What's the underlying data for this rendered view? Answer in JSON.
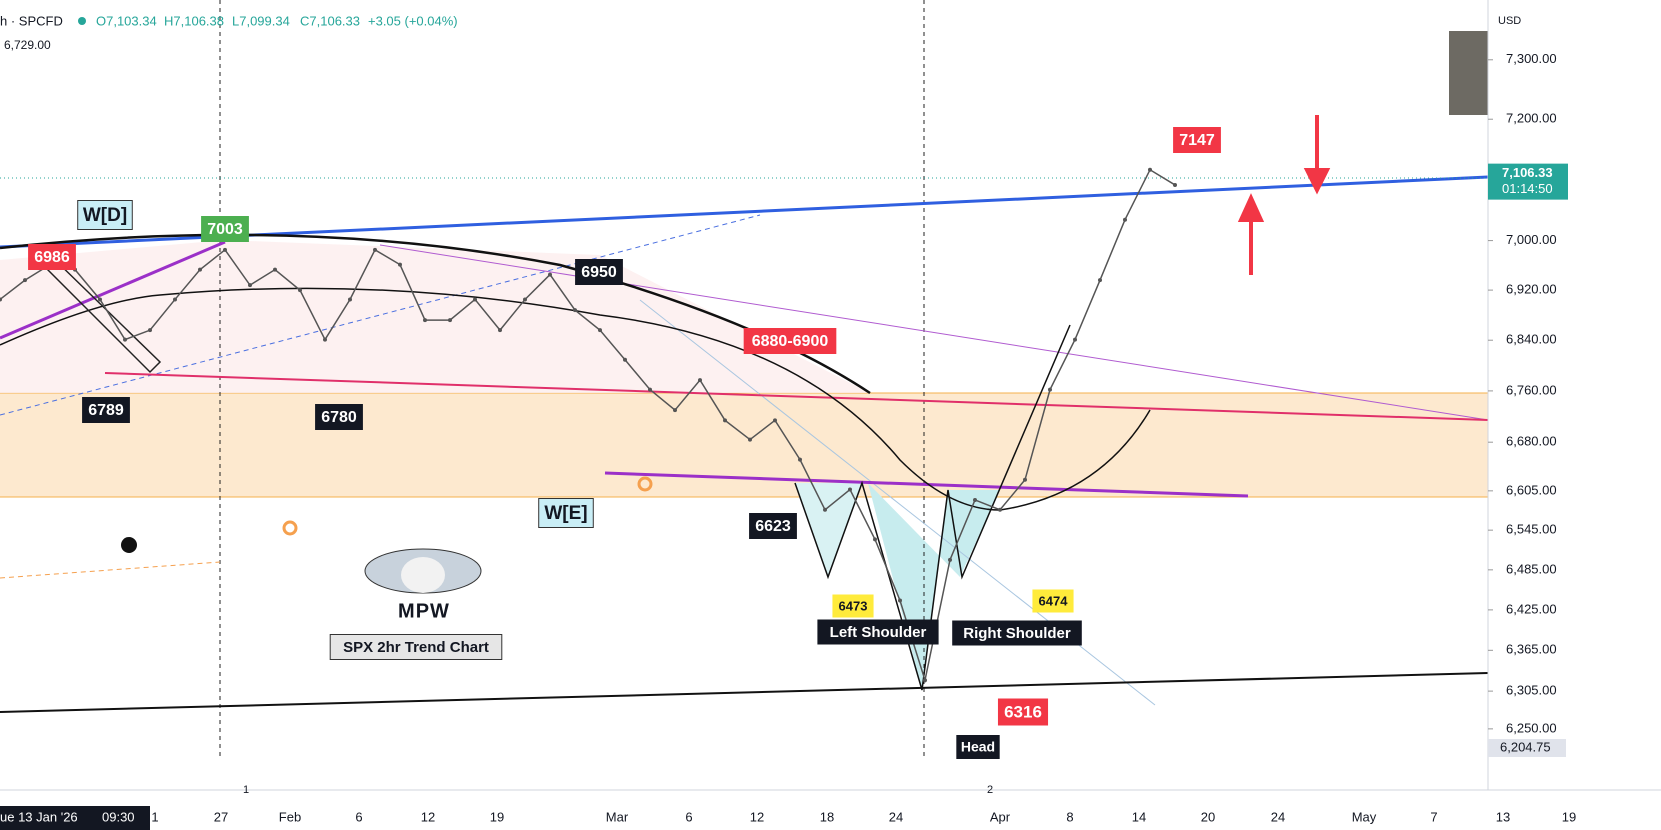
{
  "chart_data": {
    "type": "line",
    "header": {
      "symbol": "h · SPCFD",
      "open": "O7,103.34",
      "high": "H7,106.38",
      "low": "L7,099.34",
      "close": "C7,106.33",
      "change": "+3.05 (+0.04%)",
      "sub": "6,729.00"
    },
    "currency": "USD",
    "log_scale": true,
    "color": "#555555",
    "values": [
      6905,
      6936,
      6961,
      6953,
      6905,
      6841,
      6856,
      6905,
      6953,
      6985,
      6928,
      6953,
      6920,
      6841,
      6905,
      6985,
      6961,
      6872,
      6872,
      6905,
      6856,
      6905,
      6945,
      6888,
      6856,
      6809,
      6762,
      6730,
      6777,
      6714,
      6684,
      6714,
      6653,
      6576,
      6607,
      6531,
      6439,
      6321,
      6500,
      6591,
      6576,
      6622,
      6762,
      6841,
      6936,
      7034,
      7116,
      7091
    ],
    "ylim": [
      6205,
      7402
    ],
    "yticks": [
      {
        "value": 7300,
        "label": "7,300.00"
      },
      {
        "value": 7200,
        "label": "7,200.00"
      },
      {
        "value": 7000,
        "label": "7,000.00"
      },
      {
        "value": 6920,
        "label": "6,920.00"
      },
      {
        "value": 6840,
        "label": "6,840.00"
      },
      {
        "value": 6760,
        "label": "6,760.00"
      },
      {
        "value": 6680,
        "label": "6,680.00"
      },
      {
        "value": 6605,
        "label": "6,605.00"
      },
      {
        "value": 6545,
        "label": "6,545.00"
      },
      {
        "value": 6485,
        "label": "6,485.00"
      },
      {
        "value": 6425,
        "label": "6,425.00"
      },
      {
        "value": 6365,
        "label": "6,365.00"
      },
      {
        "value": 6305,
        "label": "6,305.00"
      },
      {
        "value": 6250,
        "label": "6,250.00"
      }
    ],
    "last_price": {
      "value": 7106.33,
      "label": "7,106.33"
    },
    "countdown": "01:14:50",
    "bottom_price": {
      "value": 6204.75,
      "label": "6,204.75"
    },
    "xticks": [
      "1",
      "27",
      "Feb",
      "6",
      "12",
      "19",
      "Mar",
      "6",
      "12",
      "18",
      "24",
      "Apr",
      "8",
      "14",
      "20",
      "24",
      "May",
      "7",
      "13",
      "19"
    ],
    "cursor_date": "ue 13 Jan '26",
    "cursor_time": "09:30",
    "session_marks": [
      "1",
      "2"
    ],
    "annotations": [
      {
        "text": "W[D]",
        "style": "cyan"
      },
      {
        "text": "7003",
        "style": "green"
      },
      {
        "text": "6986",
        "style": "red"
      },
      {
        "text": "6950",
        "style": "black"
      },
      {
        "text": "6789",
        "style": "black"
      },
      {
        "text": "6780",
        "style": "black"
      },
      {
        "text": "6880-6900",
        "style": "red"
      },
      {
        "text": "W[E]",
        "style": "cyan"
      },
      {
        "text": "6623",
        "style": "black"
      },
      {
        "text": "6473",
        "style": "yellow"
      },
      {
        "text": "6474",
        "style": "yellow"
      },
      {
        "text": "Left Shoulder",
        "style": "black"
      },
      {
        "text": "Right Shoulder",
        "style": "black"
      },
      {
        "text": "Head",
        "style": "black"
      },
      {
        "text": "6316",
        "style": "red"
      },
      {
        "text": "7147",
        "style": "red"
      },
      {
        "text": "MPW",
        "style": "plain"
      },
      {
        "text": "SPX 2hr Trend Chart",
        "style": "gray"
      }
    ]
  }
}
